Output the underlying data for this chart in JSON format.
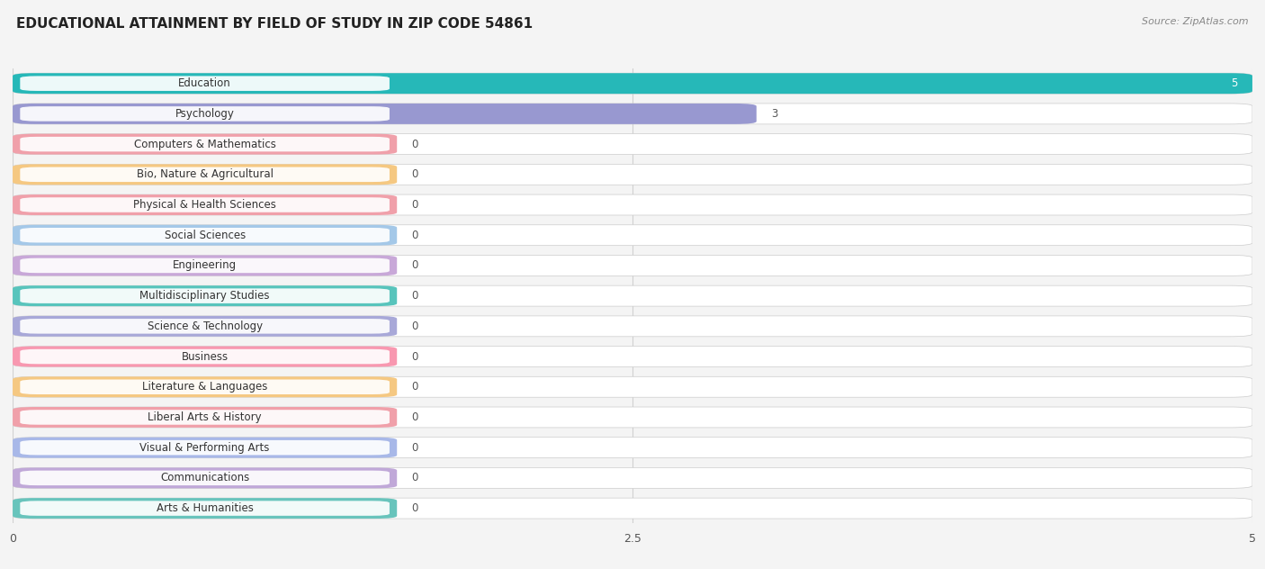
{
  "title": "EDUCATIONAL ATTAINMENT BY FIELD OF STUDY IN ZIP CODE 54861",
  "source": "Source: ZipAtlas.com",
  "categories": [
    "Education",
    "Psychology",
    "Computers & Mathematics",
    "Bio, Nature & Agricultural",
    "Physical & Health Sciences",
    "Social Sciences",
    "Engineering",
    "Multidisciplinary Studies",
    "Science & Technology",
    "Business",
    "Literature & Languages",
    "Liberal Arts & History",
    "Visual & Performing Arts",
    "Communications",
    "Arts & Humanities"
  ],
  "values": [
    5,
    3,
    0,
    0,
    0,
    0,
    0,
    0,
    0,
    0,
    0,
    0,
    0,
    0,
    0
  ],
  "bar_colors": [
    "#26b8b8",
    "#9898d0",
    "#f0a0aa",
    "#f5c882",
    "#f0a0aa",
    "#a4c8e8",
    "#c8a8d8",
    "#58c4bc",
    "#a8a8d8",
    "#f898b0",
    "#f5c882",
    "#f0a0aa",
    "#a8b8e8",
    "#c0a8d8",
    "#68c4bc"
  ],
  "xlim": [
    0,
    5
  ],
  "xticks": [
    0,
    2.5,
    5
  ],
  "bg_color": "#f4f4f4",
  "row_bg_color": "#ffffff",
  "grid_color": "#d0d0d0",
  "title_fontsize": 11,
  "label_fontsize": 8.5,
  "value_fontsize": 8.5,
  "tick_fontsize": 9
}
